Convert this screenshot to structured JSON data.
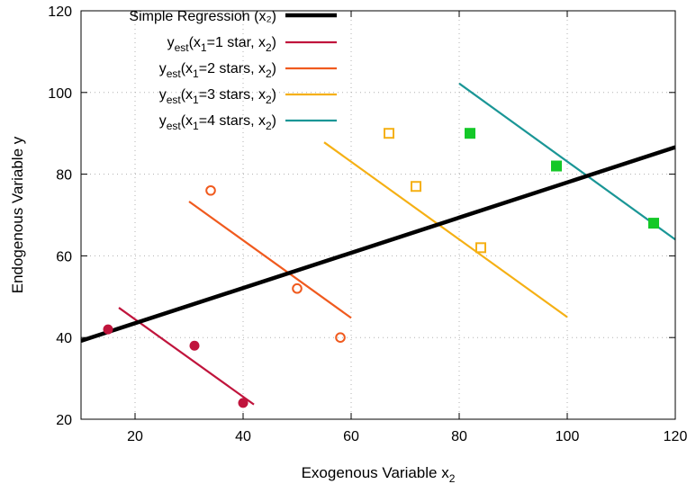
{
  "chart_data": {
    "type": "scatter",
    "xlabel": "Exogenous Variable x",
    "xlabel_sub": "2",
    "ylabel": "Endogenous Variable y",
    "xlim": [
      10,
      120
    ],
    "ylim": [
      20,
      120
    ],
    "xticks": [
      20,
      40,
      60,
      80,
      100,
      120
    ],
    "yticks": [
      20,
      40,
      60,
      80,
      100,
      120
    ],
    "grid": true,
    "legend_position": "top-left",
    "regression": {
      "name": "Simple Regression (x₂)",
      "color": "#000000",
      "x": [
        10,
        120
      ],
      "y": [
        39.2,
        86.6
      ]
    },
    "groups": [
      {
        "legend": {
          "pre": "y",
          "sub1": "est",
          "mid": "(x",
          "sub2": "1",
          "post": "=1 star,   x",
          "sub3": "2",
          "end": ")"
        },
        "color": "#c0143c",
        "marker": "filled-circle",
        "points": [
          {
            "x": 15,
            "y": 42
          },
          {
            "x": 31,
            "y": 38
          },
          {
            "x": 40,
            "y": 24
          }
        ],
        "line": {
          "x": [
            17,
            42
          ],
          "y": [
            47.3,
            23.6
          ]
        }
      },
      {
        "legend": {
          "pre": "y",
          "sub1": "est",
          "mid": "(x",
          "sub2": "1",
          "post": "=2 stars, x",
          "sub3": "2",
          "end": ")"
        },
        "color": "#f05a1e",
        "marker": "open-circle",
        "points": [
          {
            "x": 34,
            "y": 76
          },
          {
            "x": 50,
            "y": 52
          },
          {
            "x": 58,
            "y": 40
          }
        ],
        "line": {
          "x": [
            30,
            60
          ],
          "y": [
            73.3,
            44.8
          ]
        }
      },
      {
        "legend": {
          "pre": "y",
          "sub1": "est",
          "mid": "(x",
          "sub2": "1",
          "post": "=3 stars, x",
          "sub3": "2",
          "end": ")"
        },
        "color": "#f5b014",
        "marker": "open-square",
        "points": [
          {
            "x": 67,
            "y": 90
          },
          {
            "x": 72,
            "y": 77
          },
          {
            "x": 84,
            "y": 62
          }
        ],
        "line": {
          "x": [
            55,
            100
          ],
          "y": [
            87.8,
            45
          ]
        }
      },
      {
        "legend": {
          "pre": "y",
          "sub1": "est",
          "mid": "(x",
          "sub2": "1",
          "post": "=4 stars, x",
          "sub3": "2",
          "end": ")"
        },
        "color": "#1a9696",
        "marker": "filled-square",
        "point_color": "#14c828",
        "points": [
          {
            "x": 82,
            "y": 90
          },
          {
            "x": 98,
            "y": 82
          },
          {
            "x": 116,
            "y": 68
          }
        ],
        "line": {
          "x": [
            80,
            120
          ],
          "y": [
            102.2,
            64
          ]
        }
      }
    ]
  }
}
